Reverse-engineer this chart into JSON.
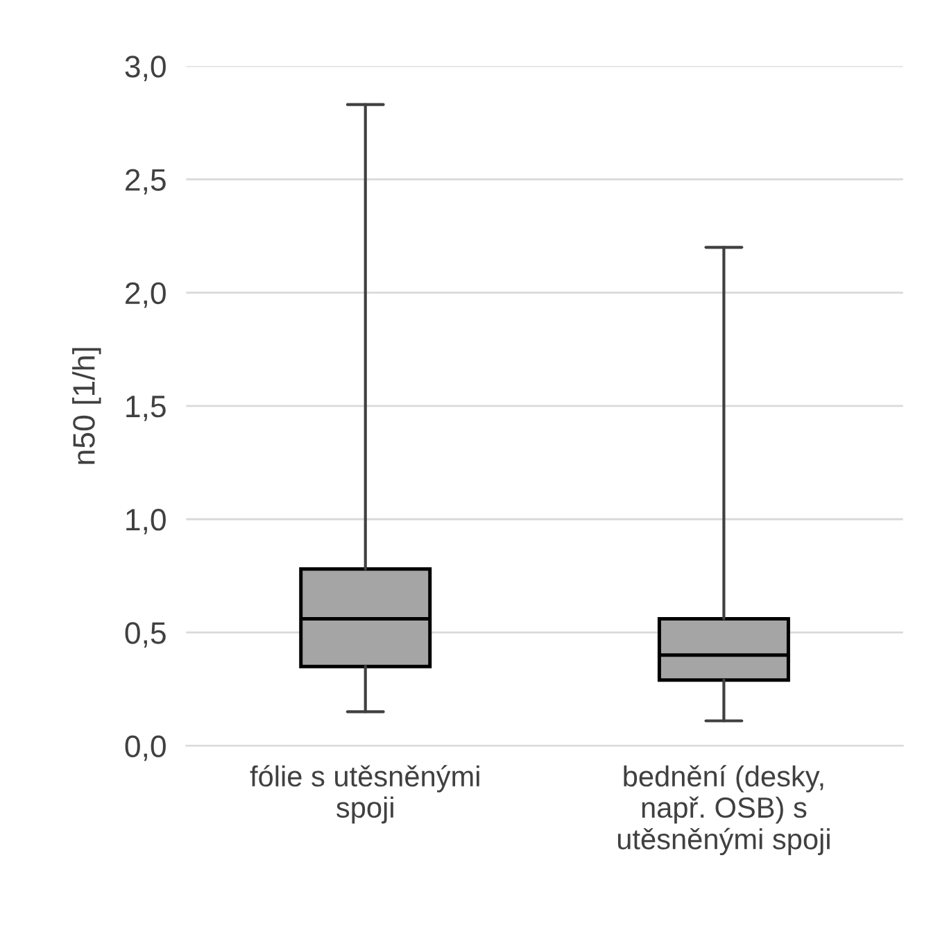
{
  "chart_data": {
    "type": "box",
    "ylabel": "n50 [1/h]",
    "categories": [
      "fólie s utěsněnými\nspoji",
      "bednění (desky,\nnapř. OSB) s\nutěsněnými spoji"
    ],
    "boxes": [
      {
        "low": 0.15,
        "q1": 0.35,
        "median": 0.56,
        "q3": 0.78,
        "high": 2.83
      },
      {
        "low": 0.11,
        "q1": 0.29,
        "median": 0.4,
        "q3": 0.56,
        "high": 2.2
      }
    ],
    "color": "#a5a5a5",
    "ylim": [
      0,
      3
    ],
    "yticks": [
      {
        "value": 0,
        "label": "0,0"
      },
      {
        "value": 0.5,
        "label": "0,5"
      },
      {
        "value": 1,
        "label": "1,0"
      },
      {
        "value": 1.5,
        "label": "1,5"
      },
      {
        "value": 2,
        "label": "2,0"
      },
      {
        "value": 2.5,
        "label": "2,5"
      },
      {
        "value": 3,
        "label": "3,0"
      }
    ],
    "grid": "y",
    "legend": false
  }
}
